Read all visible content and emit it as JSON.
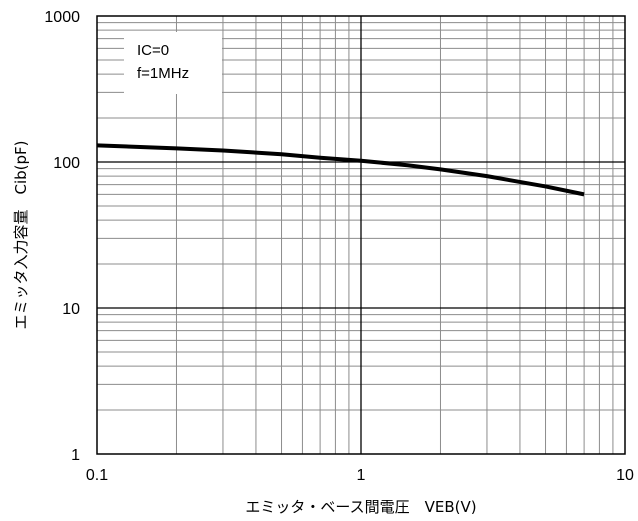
{
  "chart_data": {
    "type": "line",
    "title": "",
    "xlabel": "エミッタ・ベース間電圧　VEB(V)",
    "ylabel": "エミッタ入力容量　Cib(pF)",
    "xscale": "log",
    "yscale": "log",
    "xlim": [
      0.1,
      10
    ],
    "ylim": [
      1,
      1000
    ],
    "grid": true,
    "x_ticks": [
      {
        "value": 0.1,
        "label": "0.1"
      },
      {
        "value": 1,
        "label": "1"
      },
      {
        "value": 10,
        "label": "10"
      }
    ],
    "y_ticks": [
      {
        "value": 1,
        "label": "1"
      },
      {
        "value": 10,
        "label": "10"
      },
      {
        "value": 100,
        "label": "100"
      },
      {
        "value": 1000,
        "label": "1000"
      }
    ],
    "annotations": [
      "IC=0",
      "f=1MHz"
    ],
    "series": [
      {
        "color": "#000000",
        "x": [
          0.1,
          0.2,
          0.3,
          0.5,
          0.7,
          1.0,
          1.5,
          2.0,
          3.0,
          5.0,
          7.0
        ],
        "y": [
          130,
          124,
          120,
          113,
          107,
          102,
          95,
          89,
          80,
          68,
          60
        ]
      }
    ]
  }
}
